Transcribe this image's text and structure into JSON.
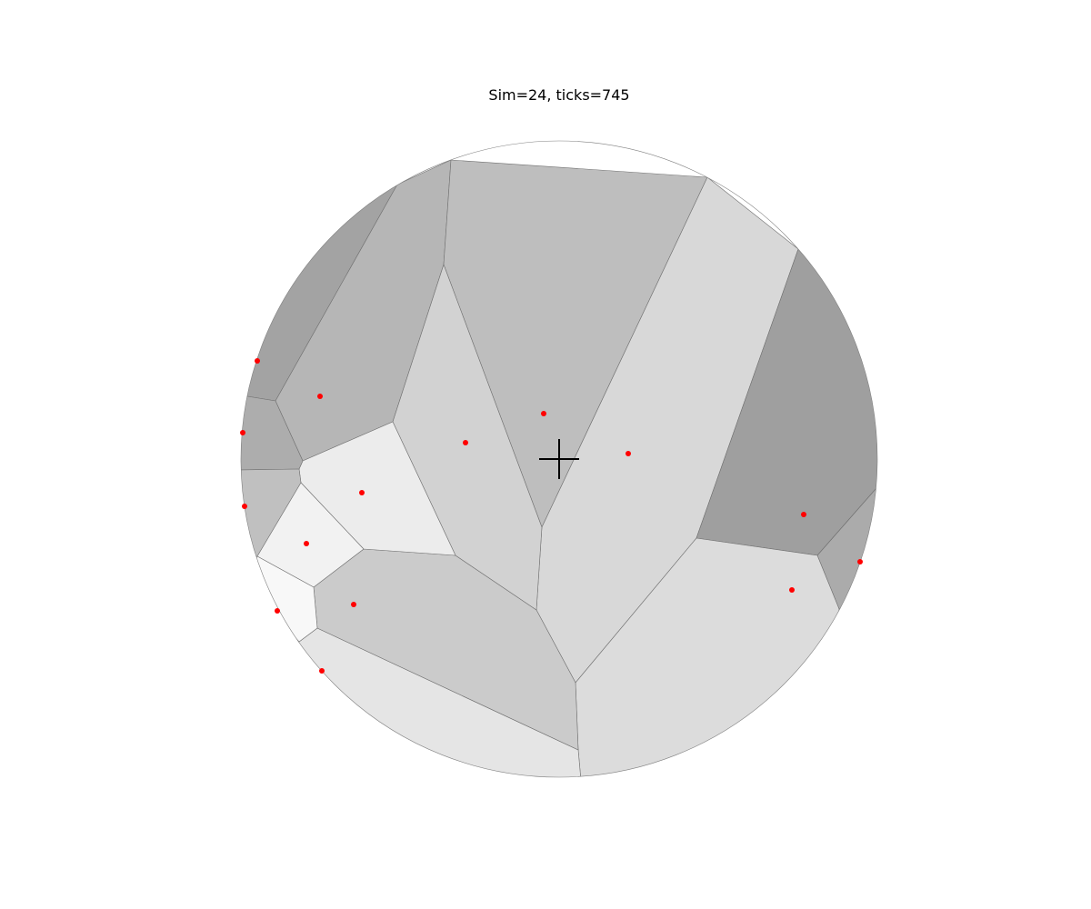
{
  "title": "Sim=24, ticks=745",
  "colors": {
    "background": "#ffffff",
    "seed": "#ff0000",
    "edge": "#707070",
    "crosshair": "#000000"
  },
  "cells": [
    {
      "name": "cell-top-left-outer",
      "shade": "#a3a3a3"
    },
    {
      "name": "cell-top-left",
      "shade": "#b6b6b6"
    },
    {
      "name": "cell-top-center",
      "shade": "#bebebe"
    },
    {
      "name": "cell-top-right",
      "shade": "#d8d8d8"
    },
    {
      "name": "cell-right",
      "shade": "#9f9f9f"
    },
    {
      "name": "cell-right-edge",
      "shade": "#ababab"
    },
    {
      "name": "cell-bottom-right",
      "shade": "#dcdcdc"
    },
    {
      "name": "cell-bottom",
      "shade": "#e5e5e5"
    },
    {
      "name": "cell-bottom-center-left",
      "shade": "#cbcbcb"
    },
    {
      "name": "cell-center",
      "shade": "#d2d2d2"
    },
    {
      "name": "cell-left-inner",
      "shade": "#ececec"
    },
    {
      "name": "cell-left-mid",
      "shade": "#adadad"
    },
    {
      "name": "cell-left-lower",
      "shade": "#c0c0c0"
    },
    {
      "name": "cell-left-bottom",
      "shade": "#f2f2f2"
    },
    {
      "name": "cell-left-bottom-edge",
      "shade": "#f8f8f8"
    }
  ]
}
